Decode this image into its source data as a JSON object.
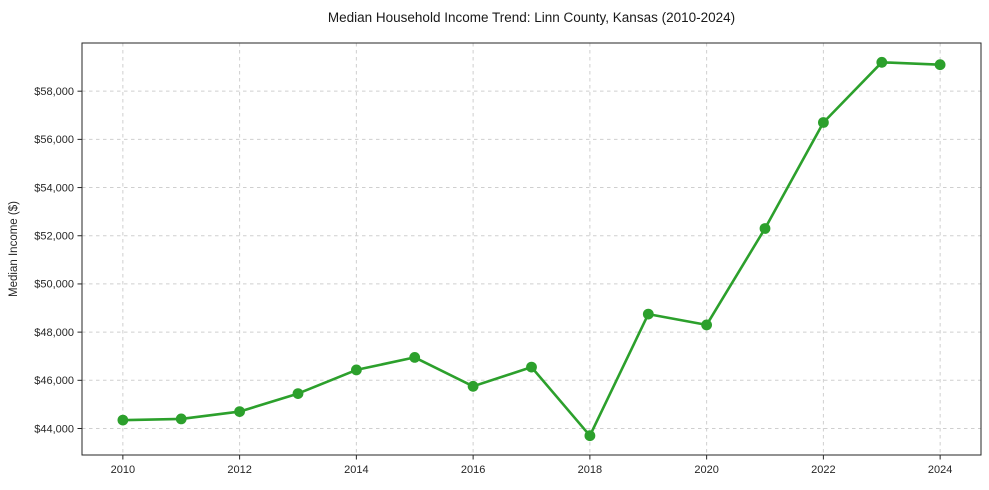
{
  "chart_data": {
    "type": "line",
    "title": "Median Household Income Trend: Linn County, Kansas (2010-2024)",
    "xlabel": "",
    "ylabel": "Median Income ($)",
    "x": [
      2010,
      2011,
      2012,
      2013,
      2014,
      2015,
      2016,
      2017,
      2018,
      2019,
      2020,
      2021,
      2022,
      2023,
      2024
    ],
    "values": [
      44350,
      44400,
      44700,
      45450,
      46430,
      46950,
      45750,
      46550,
      43700,
      48750,
      48300,
      52300,
      56700,
      59200,
      59100
    ],
    "xlim": [
      2009.3,
      2024.7
    ],
    "ylim": [
      42900,
      60000
    ],
    "x_ticks": [
      2010,
      2012,
      2014,
      2016,
      2018,
      2020,
      2022,
      2024
    ],
    "x_tick_labels": [
      "2010",
      "2012",
      "2014",
      "2016",
      "2018",
      "2020",
      "2022",
      "2024"
    ],
    "y_ticks": [
      44000,
      46000,
      48000,
      50000,
      52000,
      54000,
      56000,
      58000
    ],
    "y_tick_labels": [
      "$44,000",
      "$46,000",
      "$48,000",
      "$50,000",
      "$52,000",
      "$54,000",
      "$56,000",
      "$58,000"
    ],
    "grid": true,
    "legend": "none",
    "line_color": "#2ca02c",
    "marker": "circle",
    "gridline_color": "#cfcfcf",
    "spine_color": "#262626",
    "background_color": "#ffffff"
  }
}
